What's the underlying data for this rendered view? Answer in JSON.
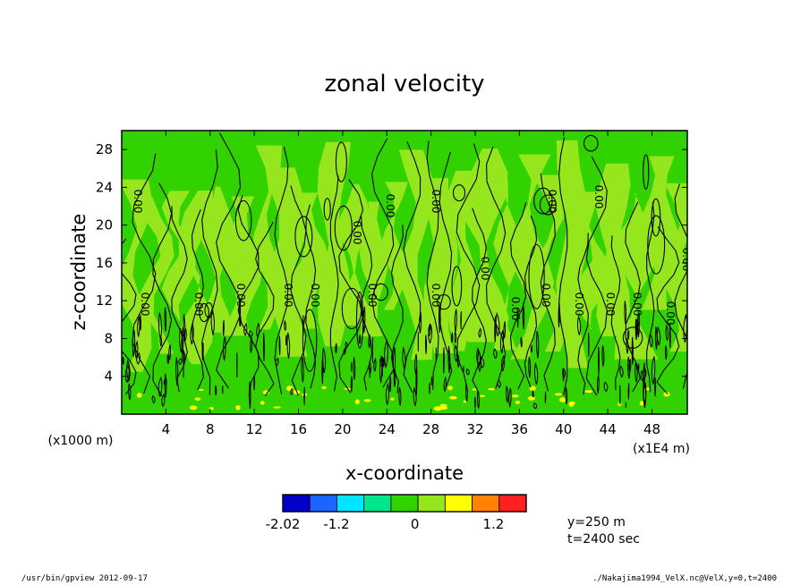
{
  "chart_data": {
    "type": "heatmap",
    "title": "zonal velocity",
    "xlabel": "x-coordinate",
    "ylabel": "z-coordinate",
    "x_unit_label": "(x1E4 m)",
    "y_unit_label": "(x1000 m)",
    "xlim": [
      0,
      51.2
    ],
    "ylim": [
      0,
      30
    ],
    "xticks": [
      4,
      8,
      12,
      16,
      20,
      24,
      28,
      32,
      36,
      40,
      44,
      48
    ],
    "yticks": [
      4,
      8,
      12,
      16,
      20,
      24,
      28
    ],
    "contour_label": "0.00",
    "colorbar": {
      "colors": [
        "#0000c8",
        "#1e64ff",
        "#00e6ff",
        "#00e68c",
        "#32d200",
        "#96e61e",
        "#ffff00",
        "#ff8200",
        "#ff2020"
      ],
      "tick_labels": [
        "-2.02",
        "-1.2",
        "0",
        "1.2"
      ],
      "tick_values": [
        -2.02,
        -1.2,
        0,
        1.2
      ],
      "range": [
        -2.02,
        1.7
      ]
    },
    "background_colors": {
      "low": "#32d200",
      "high": "#96e61e",
      "fringe": "#ffff00"
    }
  },
  "meta": {
    "y_info": "y=250 m",
    "t_info": "t=2400 sec"
  },
  "footer": {
    "left": "/usr/bin/gpview  2012-09-17",
    "right": "./Nakajima1994_VelX.nc@VelX,y=0,t=2400"
  }
}
